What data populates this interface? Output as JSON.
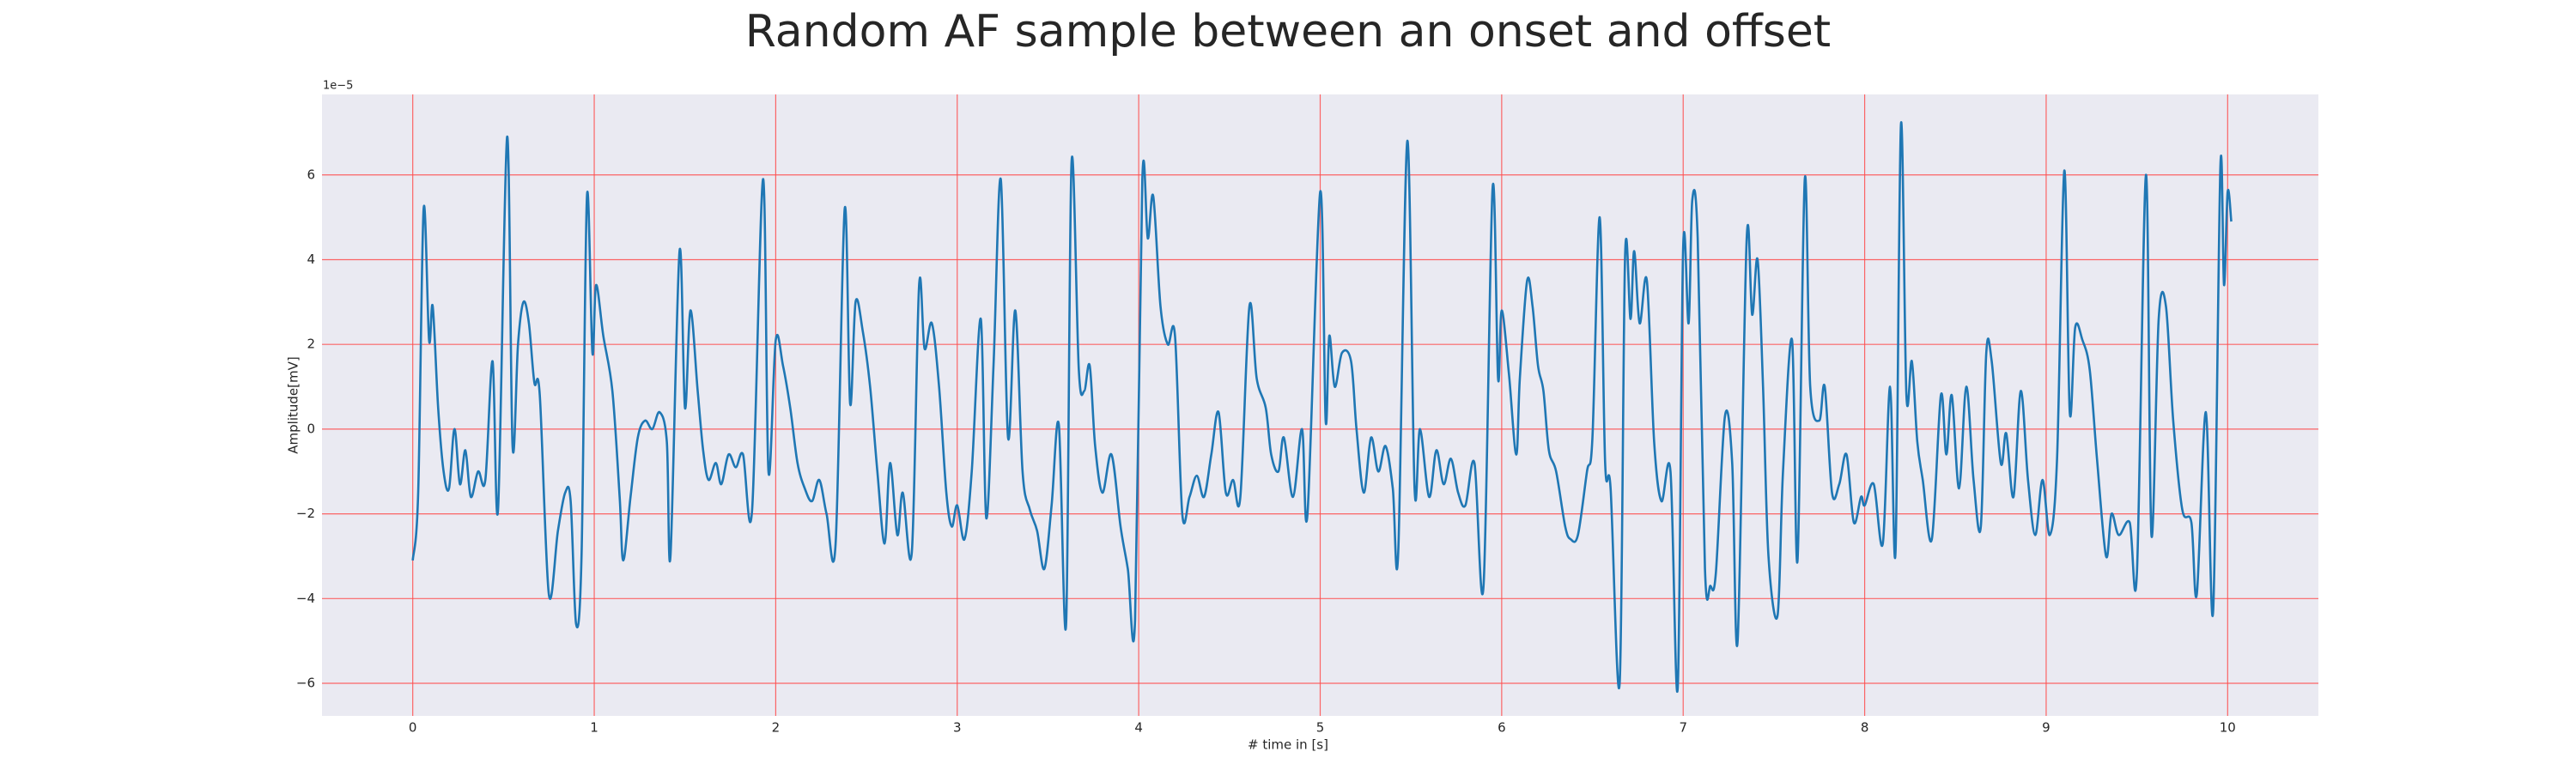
{
  "chart_data": {
    "type": "line",
    "title": "Random AF sample between an onset and offset",
    "xlabel": "# time in [s]",
    "ylabel": "Amplitude[mV]",
    "y_offset_label": "1e−5",
    "color": "#1f77b4",
    "background": "#eaeaf2",
    "grid": true,
    "grid_color": "#ff4d4d",
    "xlim": [
      -0.5,
      10.5
    ],
    "ylim": [
      -6.77,
      7.9
    ],
    "xticks": [
      0,
      1,
      2,
      3,
      4,
      5,
      6,
      7,
      8,
      9,
      10
    ],
    "yticks": [
      {
        "value": -6,
        "label": "−6"
      },
      {
        "value": -4,
        "label": "−4"
      },
      {
        "value": -2,
        "label": "−2"
      },
      0,
      2,
      4,
      6
    ],
    "x": [
      0,
      0.03,
      0.06,
      0.09,
      0.11,
      0.14,
      0.17,
      0.2,
      0.23,
      0.26,
      0.29,
      0.32,
      0.36,
      0.4,
      0.44,
      0.47,
      0.52,
      0.55,
      0.58,
      0.61,
      0.64,
      0.67,
      0.7,
      0.75,
      0.8,
      0.84,
      0.87,
      0.9,
      0.93,
      0.96,
      0.99,
      1.01,
      1.05,
      1.1,
      1.14,
      1.16,
      1.2,
      1.24,
      1.28,
      1.32,
      1.36,
      1.4,
      1.42,
      1.47,
      1.5,
      1.53,
      1.57,
      1.6,
      1.63,
      1.67,
      1.7,
      1.74,
      1.78,
      1.82,
      1.87,
      1.93,
      1.96,
      2.0,
      2.04,
      2.08,
      2.12,
      2.16,
      2.2,
      2.24,
      2.28,
      2.33,
      2.38,
      2.41,
      2.44,
      2.48,
      2.52,
      2.56,
      2.6,
      2.63,
      2.67,
      2.7,
      2.75,
      2.79,
      2.82,
      2.86,
      2.9,
      2.94,
      2.97,
      3.0,
      3.04,
      3.08,
      3.13,
      3.16,
      3.2,
      3.24,
      3.28,
      3.32,
      3.36,
      3.4,
      3.44,
      3.48,
      3.52,
      3.56,
      3.6,
      3.63,
      3.67,
      3.7,
      3.73,
      3.76,
      3.8,
      3.85,
      3.9,
      3.94,
      3.98,
      4.02,
      4.05,
      4.08,
      4.12,
      4.16,
      4.2,
      4.24,
      4.28,
      4.32,
      4.36,
      4.4,
      4.44,
      4.48,
      4.52,
      4.56,
      4.61,
      4.65,
      4.7,
      4.73,
      4.77,
      4.8,
      4.85,
      4.9,
      4.93,
      5.0,
      5.03,
      5.05,
      5.08,
      5.12,
      5.17,
      5.2,
      5.24,
      5.28,
      5.32,
      5.36,
      5.4,
      5.43,
      5.48,
      5.52,
      5.55,
      5.6,
      5.64,
      5.68,
      5.72,
      5.76,
      5.8,
      5.85,
      5.9,
      5.95,
      5.98,
      6.0,
      6.04,
      6.08,
      6.1,
      6.14,
      6.17,
      6.2,
      6.23,
      6.26,
      6.3,
      6.35,
      6.38,
      6.42,
      6.47,
      6.5,
      6.54,
      6.57,
      6.6,
      6.65,
      6.68,
      6.71,
      6.73,
      6.76,
      6.8,
      6.84,
      6.88,
      6.93,
      6.97,
      7.0,
      7.03,
      7.05,
      7.08,
      7.12,
      7.15,
      7.18,
      7.23,
      7.27,
      7.3,
      7.35,
      7.38,
      7.41,
      7.44,
      7.47,
      7.52,
      7.55,
      7.6,
      7.63,
      7.67,
      7.7,
      7.75,
      7.78,
      7.82,
      7.86,
      7.9,
      7.94,
      7.98,
      8.0,
      8.05,
      8.1,
      8.14,
      8.17,
      8.2,
      8.23,
      8.26,
      8.29,
      8.32,
      8.37,
      8.42,
      8.45,
      8.48,
      8.52,
      8.56,
      8.6,
      8.64,
      8.67,
      8.7,
      8.75,
      8.78,
      8.82,
      8.86,
      8.9,
      8.94,
      8.98,
      9.02,
      9.06,
      9.1,
      9.13,
      9.16,
      9.2,
      9.24,
      9.28,
      9.33,
      9.36,
      9.4,
      9.46,
      9.5,
      9.55,
      9.58,
      9.62,
      9.66,
      9.7,
      9.75,
      9.8,
      9.83,
      9.88,
      9.92,
      9.96,
      9.98,
      10.0,
      10.02
    ],
    "values": [
      -3.1,
      -1.5,
      5.2,
      2.1,
      2.9,
      0.5,
      -1.0,
      -1.4,
      0,
      -1.3,
      -0.5,
      -1.6,
      -1.0,
      -1.2,
      1.6,
      -1.9,
      6.9,
      -0.4,
      2.0,
      3.0,
      2.5,
      1.1,
      0.8,
      -3.9,
      -2.4,
      -1.5,
      -1.7,
      -4.6,
      -3.0,
      5.5,
      1.8,
      3.4,
      2.2,
      0.9,
      -1.6,
      -3.1,
      -1.6,
      -0.2,
      0.2,
      0.0,
      0.4,
      -0.3,
      -3.0,
      4.2,
      0.5,
      2.8,
      0.9,
      -0.5,
      -1.2,
      -0.8,
      -1.3,
      -0.6,
      -0.9,
      -0.6,
      -1.9,
      5.9,
      -1.0,
      2.1,
      1.5,
      0.5,
      -0.8,
      -1.4,
      -1.7,
      -1.2,
      -2.0,
      -2.7,
      5.2,
      0.6,
      3.0,
      2.3,
      1.0,
      -1.0,
      -2.7,
      -0.8,
      -2.5,
      -1.5,
      -2.9,
      3.4,
      1.9,
      2.5,
      1.0,
      -1.5,
      -2.3,
      -1.8,
      -2.6,
      -1.0,
      2.6,
      -2.1,
      1.5,
      5.9,
      -0.2,
      2.8,
      -1.0,
      -1.9,
      -2.4,
      -3.3,
      -1.8,
      0.1,
      -4.6,
      6.3,
      1.4,
      0.9,
      1.5,
      -0.4,
      -1.5,
      -0.6,
      -2.3,
      -3.3,
      -4.5,
      5.9,
      4.5,
      5.5,
      2.9,
      2.0,
      2.2,
      -2.0,
      -1.6,
      -1.1,
      -1.6,
      -0.6,
      0.4,
      -1.5,
      -1.2,
      -1.6,
      2.9,
      1.2,
      0.5,
      -0.6,
      -1.0,
      -0.2,
      -1.6,
      0.0,
      -2.0,
      5.6,
      0.2,
      2.2,
      1.0,
      1.8,
      1.6,
      0.0,
      -1.5,
      -0.2,
      -1.0,
      -0.4,
      -1.4,
      -2.9,
      6.8,
      -1.4,
      0.0,
      -1.6,
      -0.5,
      -1.3,
      -0.7,
      -1.5,
      -1.8,
      -0.8,
      -3.7,
      5.7,
      1.2,
      2.8,
      1.3,
      -0.6,
      1.2,
      3.5,
      2.9,
      1.5,
      0.9,
      -0.5,
      -1.0,
      -2.3,
      -2.6,
      -2.5,
      -1.0,
      -0.2,
      5.0,
      -0.8,
      -1.4,
      -6.0,
      4.1,
      2.6,
      4.2,
      2.5,
      3.5,
      -0.3,
      -1.7,
      -1.0,
      -6.1,
      4.3,
      2.5,
      5.4,
      4.5,
      -3.3,
      -3.7,
      -3.4,
      0.3,
      -0.8,
      -5.0,
      4.5,
      2.7,
      4.0,
      1.0,
      -3.0,
      -4.4,
      -1.0,
      2.1,
      -3.1,
      5.9,
      1.0,
      0.2,
      1.0,
      -1.5,
      -1.3,
      -0.6,
      -2.2,
      -1.6,
      -1.8,
      -1.3,
      -2.7,
      1.0,
      -2.9,
      7.2,
      0.8,
      1.6,
      -0.3,
      -1.2,
      -2.6,
      0.8,
      -0.6,
      0.8,
      -1.4,
      1.0,
      -1.2,
      -2.3,
      1.8,
      1.6,
      -0.8,
      -0.1,
      -1.6,
      0.9,
      -1.2,
      -2.5,
      -1.2,
      -2.5,
      -0.7,
      6.1,
      0.4,
      2.4,
      2.1,
      1.4,
      -0.7,
      -3.0,
      -2.0,
      -2.5,
      -2.2,
      -3.4,
      6.0,
      -2.5,
      2.6,
      2.9,
      0.2,
      -1.9,
      -2.2,
      -3.9,
      0.4,
      -4.3,
      6.2,
      3.4,
      5.6,
      4.9
    ]
  }
}
